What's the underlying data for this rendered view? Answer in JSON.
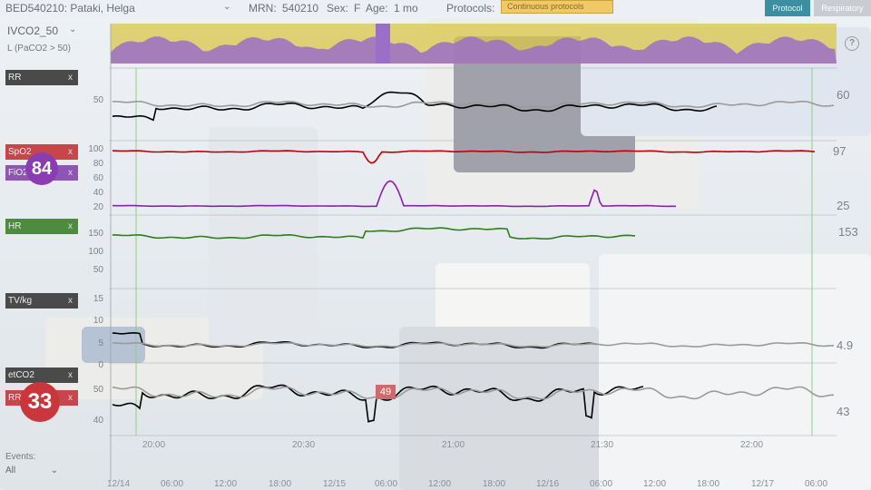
{
  "header": {
    "bed_patient": "BED540210: Pataki, Helga",
    "mrn_label": "MRN:",
    "mrn": "540210",
    "sex_label": "Sex:",
    "sex": "F",
    "age_label": "Age:",
    "age": "1 mo",
    "protocols_label": "Protocols:",
    "protocols_value": "Continuous protocols",
    "tab_protocol": "Protocol",
    "tab_respiratory": "Respiratory"
  },
  "index_panel": {
    "name": "IVCO2_50",
    "subtitle": "L (PaCO2 > 50)"
  },
  "tracks": {
    "rr": {
      "label": "RR",
      "axis": [
        "50"
      ],
      "current": "60"
    },
    "spo2": {
      "label": "SpO2",
      "current": "97"
    },
    "fio2": {
      "label": "FiO2",
      "current": "25",
      "bubble": "84"
    },
    "spo2_axis": [
      "100",
      "80",
      "60",
      "40",
      "20"
    ],
    "hr": {
      "label": "HR",
      "axis": [
        "150",
        "100",
        "50"
      ],
      "current": "153"
    },
    "tv": {
      "label": "TV/kg",
      "axis": [
        "15",
        "10",
        "5",
        "0"
      ],
      "current": "4.9"
    },
    "etco2": {
      "label": "etCO2",
      "current": "43"
    },
    "rr2": {
      "label": "RR",
      "bubble": "33",
      "flag": "49"
    },
    "etco2_axis": [
      "50",
      "40"
    ]
  },
  "time_axis": {
    "major": [
      "20:00",
      "20:30",
      "21:00",
      "21:30",
      "22:00"
    ],
    "overview": [
      "12/14",
      "06:00",
      "12:00",
      "18:00",
      "12/15",
      "06:00",
      "12:00",
      "18:00",
      "12/16",
      "06:00",
      "12:00",
      "18:00",
      "12/17",
      "06:00"
    ]
  },
  "events": {
    "label": "Events:",
    "selected": "All"
  },
  "colors": {
    "rr": "#000000",
    "spo2": "#c00000",
    "fio2": "#8a1fb0",
    "hr": "#2e7d1e",
    "etco2": "#000000",
    "chip_dark": "#4a4a4a",
    "chip_red": "#c8454a",
    "chip_green": "#4f8b3f",
    "chip_purple": "#8e55b5",
    "protocol_tab": "#3d8ea0",
    "top_band_yellow": "#d9c54a",
    "top_band_purple": "#9b6fc7"
  },
  "icons": {
    "help": "question-circle-icon",
    "dropdown": "chevron-down-icon",
    "close": "close-icon"
  }
}
